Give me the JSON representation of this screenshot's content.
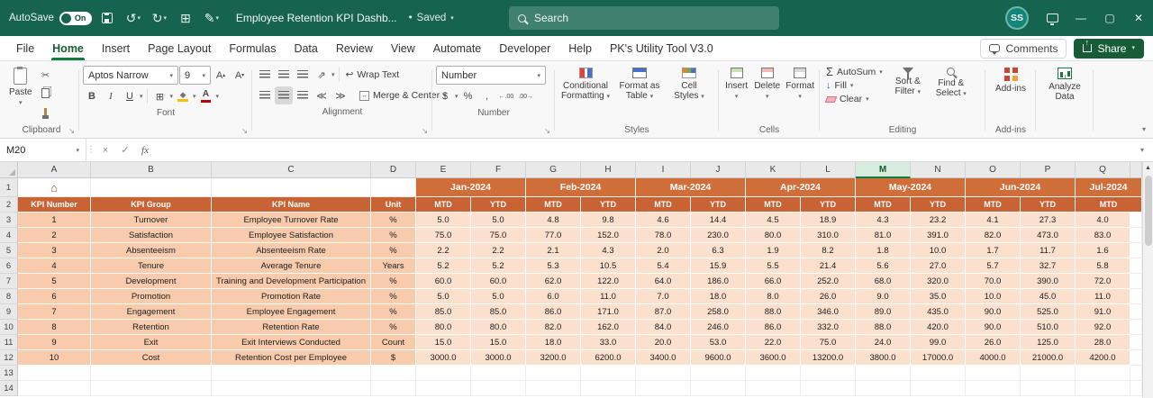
{
  "titlebar": {
    "autosave_label": "AutoSave",
    "autosave_state": "On",
    "doc_title": "Employee Retention KPI Dashb...",
    "bullet": "•",
    "saved_status": "Saved",
    "search_placeholder": "Search",
    "avatar_initials": "SS"
  },
  "menubar": {
    "tabs": [
      "File",
      "Home",
      "Insert",
      "Page Layout",
      "Formulas",
      "Data",
      "Review",
      "View",
      "Automate",
      "Developer",
      "Help",
      "PK's Utility Tool V3.0"
    ],
    "active_tab": "Home",
    "comments_label": "Comments",
    "share_label": "Share"
  },
  "ribbon": {
    "clipboard": {
      "label": "Clipboard",
      "paste": "Paste"
    },
    "font": {
      "label": "Font",
      "font_name": "Aptos Narrow",
      "font_size": "9",
      "bold": "B",
      "italic": "I",
      "underline": "U"
    },
    "alignment": {
      "label": "Alignment",
      "wrap_text": "Wrap Text",
      "merge_center": "Merge & Center"
    },
    "number": {
      "label": "Number",
      "format": "Number",
      "currency": "$",
      "percent": "%",
      "comma": ","
    },
    "styles": {
      "label": "Styles",
      "conditional": "Conditional Formatting",
      "format_table": "Format as Table",
      "cell_styles": "Cell Styles"
    },
    "cells": {
      "label": "Cells",
      "insert": "Insert",
      "delete": "Delete",
      "format": "Format"
    },
    "editing": {
      "label": "Editing",
      "autosum": "AutoSum",
      "fill": "Fill",
      "clear": "Clear",
      "sort_filter": "Sort & Filter",
      "find_select": "Find & Select"
    },
    "addins": {
      "label": "Add-ins",
      "button": "Add-ins"
    },
    "analyze": {
      "label": "Analyze Data"
    }
  },
  "formula_bar": {
    "name_box": "M20",
    "fx": "fx"
  },
  "sheet": {
    "columns": [
      "A",
      "B",
      "C",
      "D",
      "E",
      "F",
      "G",
      "H",
      "I",
      "J",
      "K",
      "L",
      "M",
      "N",
      "O",
      "P",
      "Q"
    ],
    "selected_column": "M",
    "row_numbers": [
      "1",
      "2",
      "3",
      "4",
      "5",
      "6",
      "7",
      "8",
      "9",
      "10",
      "11",
      "12",
      "13",
      "14"
    ],
    "months": [
      "Jan-2024",
      "Feb-2024",
      "Mar-2024",
      "Apr-2024",
      "May-2024",
      "Jun-2024",
      "Jul-2024"
    ],
    "header_row": {
      "kpi_number": "KPI Number",
      "kpi_group": "KPI Group",
      "kpi_name": "KPI Name",
      "unit": "Unit",
      "mtd": "MTD",
      "ytd": "YTD"
    },
    "data_rows": [
      {
        "num": "1",
        "group": "Turnover",
        "name": "Employee Turnover Rate",
        "unit": "%",
        "values": [
          "5.0",
          "5.0",
          "4.8",
          "9.8",
          "4.6",
          "14.4",
          "4.5",
          "18.9",
          "4.3",
          "23.2",
          "4.1",
          "27.3",
          "4.0"
        ]
      },
      {
        "num": "2",
        "group": "Satisfaction",
        "name": "Employee Satisfaction",
        "unit": "%",
        "values": [
          "75.0",
          "75.0",
          "77.0",
          "152.0",
          "78.0",
          "230.0",
          "80.0",
          "310.0",
          "81.0",
          "391.0",
          "82.0",
          "473.0",
          "83.0"
        ]
      },
      {
        "num": "3",
        "group": "Absenteeism",
        "name": "Absenteeism Rate",
        "unit": "%",
        "values": [
          "2.2",
          "2.2",
          "2.1",
          "4.3",
          "2.0",
          "6.3",
          "1.9",
          "8.2",
          "1.8",
          "10.0",
          "1.7",
          "11.7",
          "1.6"
        ]
      },
      {
        "num": "4",
        "group": "Tenure",
        "name": "Average Tenure",
        "unit": "Years",
        "values": [
          "5.2",
          "5.2",
          "5.3",
          "10.5",
          "5.4",
          "15.9",
          "5.5",
          "21.4",
          "5.6",
          "27.0",
          "5.7",
          "32.7",
          "5.8"
        ]
      },
      {
        "num": "5",
        "group": "Development",
        "name": "Training and Development Participation",
        "unit": "%",
        "values": [
          "60.0",
          "60.0",
          "62.0",
          "122.0",
          "64.0",
          "186.0",
          "66.0",
          "252.0",
          "68.0",
          "320.0",
          "70.0",
          "390.0",
          "72.0"
        ]
      },
      {
        "num": "6",
        "group": "Promotion",
        "name": "Promotion Rate",
        "unit": "%",
        "values": [
          "5.0",
          "5.0",
          "6.0",
          "11.0",
          "7.0",
          "18.0",
          "8.0",
          "26.0",
          "9.0",
          "35.0",
          "10.0",
          "45.0",
          "11.0"
        ]
      },
      {
        "num": "7",
        "group": "Engagement",
        "name": "Employee Engagement",
        "unit": "%",
        "values": [
          "85.0",
          "85.0",
          "86.0",
          "171.0",
          "87.0",
          "258.0",
          "88.0",
          "346.0",
          "89.0",
          "435.0",
          "90.0",
          "525.0",
          "91.0"
        ]
      },
      {
        "num": "8",
        "group": "Retention",
        "name": "Retention Rate",
        "unit": "%",
        "values": [
          "80.0",
          "80.0",
          "82.0",
          "162.0",
          "84.0",
          "246.0",
          "86.0",
          "332.0",
          "88.0",
          "420.0",
          "90.0",
          "510.0",
          "92.0"
        ]
      },
      {
        "num": "9",
        "group": "Exit",
        "name": "Exit Interviews Conducted",
        "unit": "Count",
        "values": [
          "15.0",
          "15.0",
          "18.0",
          "33.0",
          "20.0",
          "53.0",
          "22.0",
          "75.0",
          "24.0",
          "99.0",
          "26.0",
          "125.0",
          "28.0"
        ]
      },
      {
        "num": "10",
        "group": "Cost",
        "name": "Retention Cost per Employee",
        "unit": "$",
        "values": [
          "3000.0",
          "3000.0",
          "3200.0",
          "6200.0",
          "3400.0",
          "9600.0",
          "3600.0",
          "13200.0",
          "3800.0",
          "17000.0",
          "4000.0",
          "21000.0",
          "4200.0"
        ]
      }
    ]
  }
}
